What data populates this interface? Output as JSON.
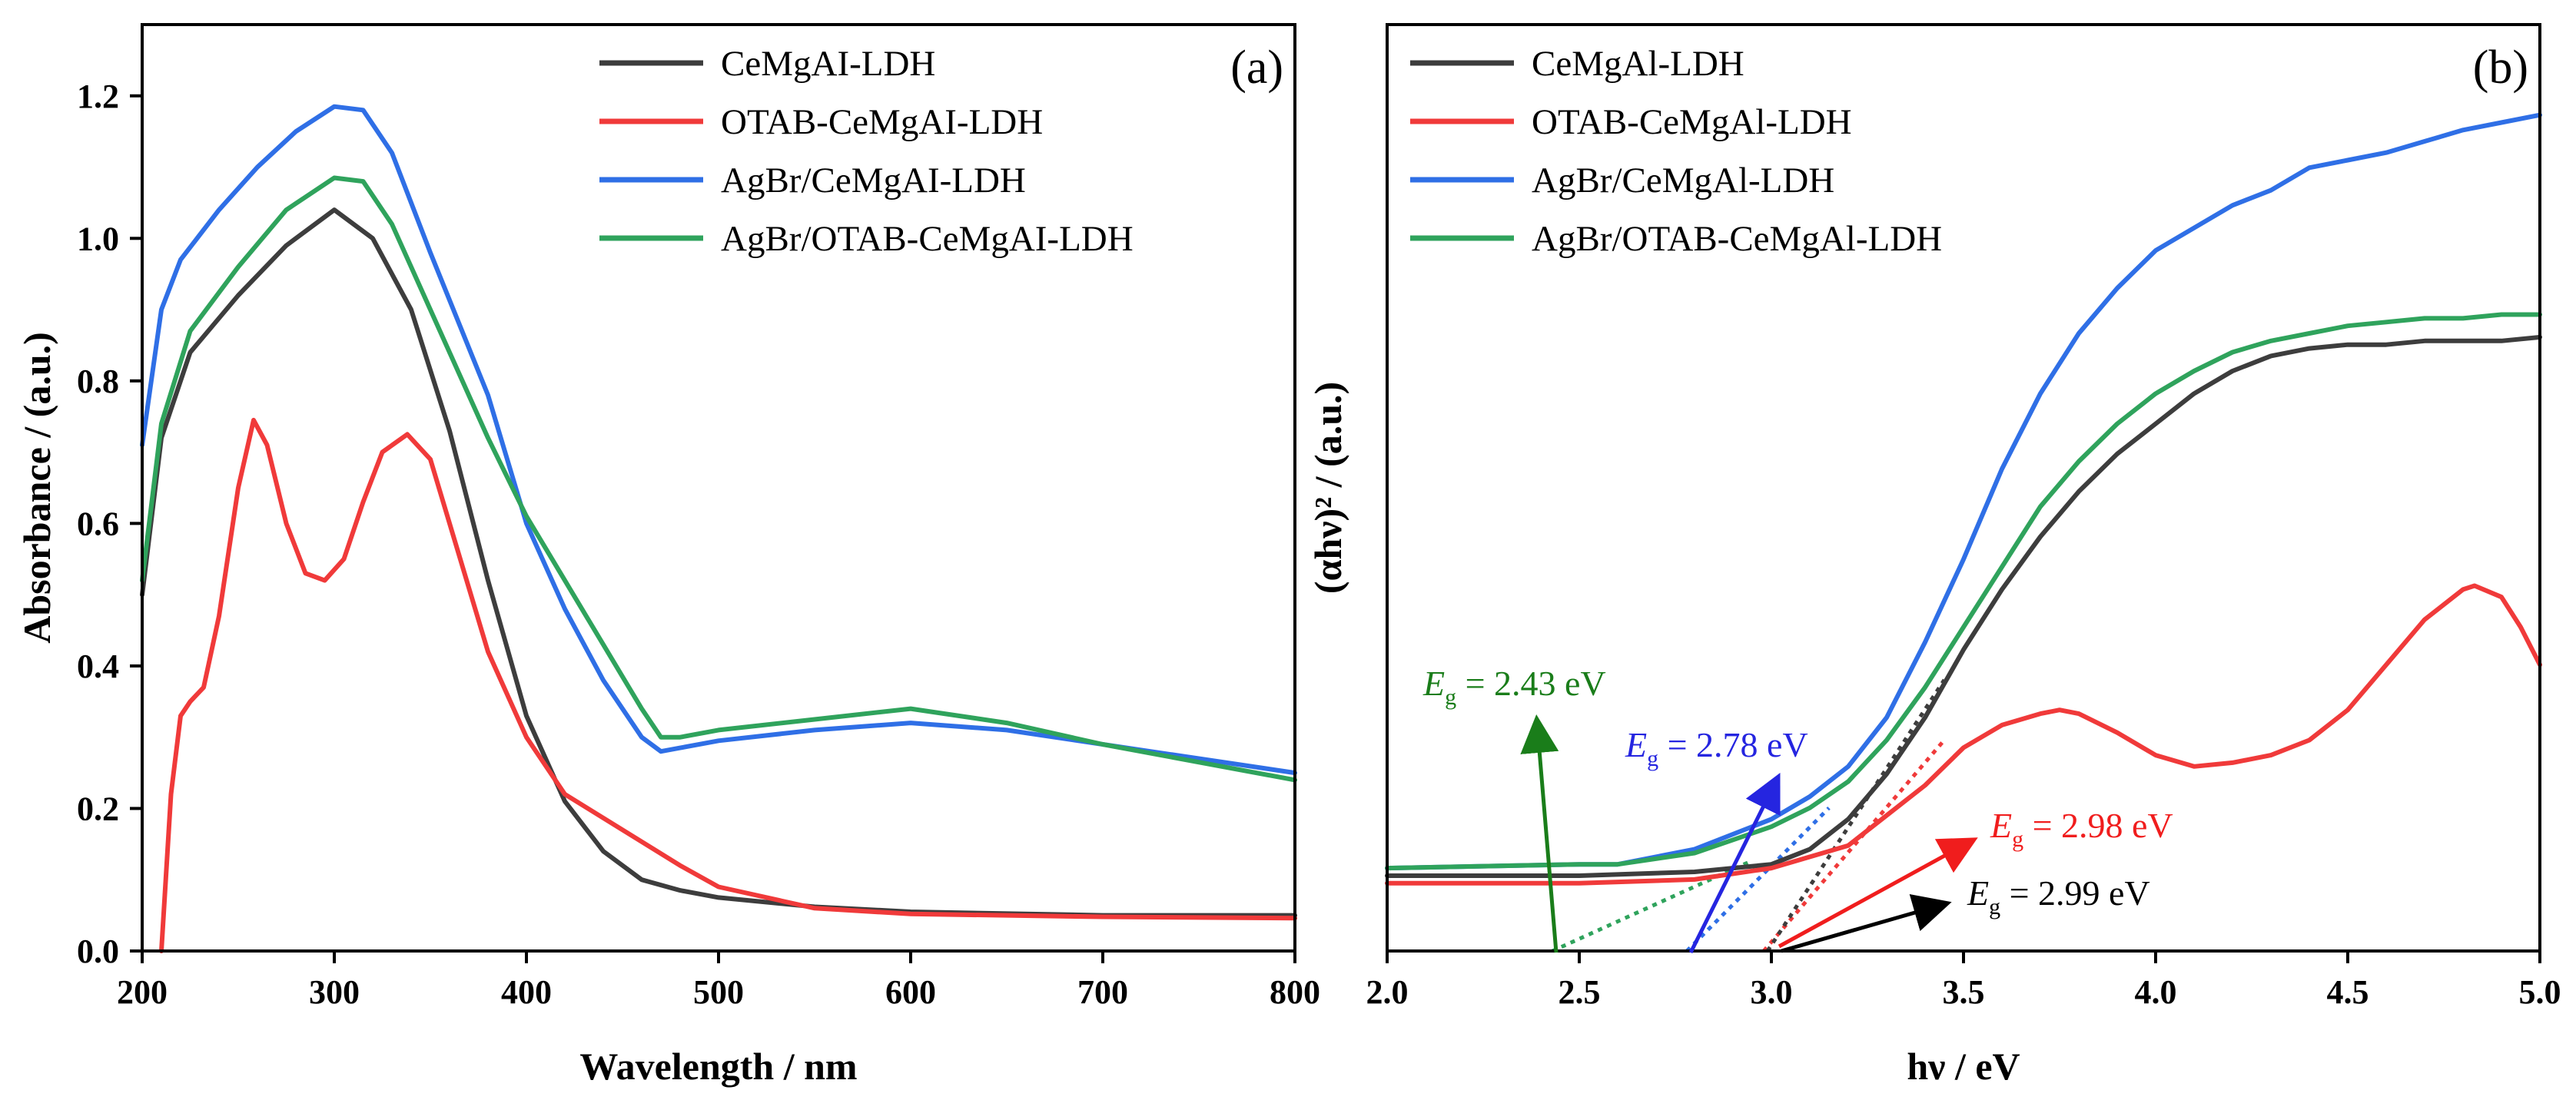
{
  "chart_data": [
    {
      "type": "line",
      "panel_label": "(a)",
      "xlabel": "Wavelength / nm",
      "ylabel": "Absorbance / (a.u.)",
      "xlim": [
        200,
        800
      ],
      "ylim": [
        0,
        1.3
      ],
      "xticks": [
        "200",
        "300",
        "400",
        "500",
        "600",
        "700",
        "800"
      ],
      "yticks": [
        "0.0",
        "0.2",
        "0.4",
        "0.6",
        "0.8",
        "1.0",
        "1.2"
      ],
      "xtick_values": [
        200,
        300,
        400,
        500,
        600,
        700,
        800
      ],
      "ytick_values": [
        0,
        0.2,
        0.4,
        0.6,
        0.8,
        1.0,
        1.2
      ],
      "legend_position": "top-right",
      "series": [
        {
          "name": "CeMgAI-LDH",
          "color": "#3d3d3d",
          "x": [
            200,
            210,
            225,
            250,
            275,
            300,
            320,
            340,
            360,
            380,
            400,
            420,
            440,
            460,
            480,
            500,
            550,
            600,
            700,
            800
          ],
          "y": [
            0.5,
            0.72,
            0.84,
            0.92,
            0.99,
            1.04,
            1.0,
            0.9,
            0.73,
            0.52,
            0.33,
            0.21,
            0.14,
            0.1,
            0.085,
            0.075,
            0.062,
            0.055,
            0.05,
            0.05
          ]
        },
        {
          "name": "OTAB-CeMgAI-LDH",
          "color": "#f03a3a",
          "x": [
            210,
            215,
            220,
            225,
            232,
            240,
            250,
            258,
            265,
            275,
            285,
            295,
            305,
            315,
            325,
            338,
            350,
            360,
            380,
            400,
            420,
            450,
            480,
            500,
            550,
            600,
            700,
            800
          ],
          "y": [
            0.0,
            0.22,
            0.33,
            0.35,
            0.37,
            0.47,
            0.65,
            0.745,
            0.71,
            0.6,
            0.53,
            0.52,
            0.55,
            0.63,
            0.7,
            0.725,
            0.69,
            0.6,
            0.42,
            0.3,
            0.22,
            0.17,
            0.12,
            0.09,
            0.06,
            0.052,
            0.048,
            0.046
          ]
        },
        {
          "name": "AgBr/CeMgAI-LDH",
          "color": "#2f6fe6",
          "x": [
            200,
            210,
            220,
            240,
            260,
            280,
            300,
            315,
            330,
            350,
            380,
            400,
            420,
            440,
            460,
            470,
            480,
            500,
            550,
            600,
            650,
            700,
            800
          ],
          "y": [
            0.71,
            0.9,
            0.97,
            1.04,
            1.1,
            1.15,
            1.185,
            1.18,
            1.12,
            0.98,
            0.78,
            0.6,
            0.48,
            0.38,
            0.3,
            0.28,
            0.285,
            0.295,
            0.31,
            0.32,
            0.31,
            0.29,
            0.25
          ]
        },
        {
          "name": "AgBr/OTAB-CeMgAI-LDH",
          "color": "#2fa35c",
          "x": [
            200,
            210,
            225,
            250,
            275,
            300,
            315,
            330,
            350,
            380,
            400,
            420,
            440,
            460,
            470,
            480,
            500,
            550,
            600,
            650,
            700,
            800
          ],
          "y": [
            0.52,
            0.74,
            0.87,
            0.96,
            1.04,
            1.085,
            1.08,
            1.02,
            0.9,
            0.72,
            0.61,
            0.52,
            0.43,
            0.34,
            0.3,
            0.3,
            0.31,
            0.325,
            0.34,
            0.32,
            0.29,
            0.24
          ]
        }
      ]
    },
    {
      "type": "line",
      "panel_label": "(b)",
      "xlabel": "hν / eV",
      "ylabel": "(αhν)² / (a.u.)",
      "xlim": [
        2.0,
        5.0
      ],
      "ylim": [
        0,
        1.23
      ],
      "xticks": [
        "2.0",
        "2.5",
        "3.0",
        "3.5",
        "4.0",
        "4.5",
        "5.0"
      ],
      "xtick_values": [
        2.0,
        2.5,
        3.0,
        3.5,
        4.0,
        4.5,
        5.0
      ],
      "legend_position": "top-left",
      "series": [
        {
          "name": "CeMgAl-LDH",
          "color": "#3d3d3d",
          "x": [
            2.0,
            2.5,
            2.8,
            3.0,
            3.1,
            3.2,
            3.3,
            3.4,
            3.5,
            3.6,
            3.7,
            3.8,
            3.9,
            4.0,
            4.1,
            4.2,
            4.3,
            4.4,
            4.5,
            4.6,
            4.7,
            4.8,
            4.9,
            5.0
          ],
          "y": [
            0.1,
            0.1,
            0.105,
            0.115,
            0.135,
            0.175,
            0.235,
            0.31,
            0.4,
            0.48,
            0.55,
            0.61,
            0.66,
            0.7,
            0.74,
            0.77,
            0.79,
            0.8,
            0.805,
            0.805,
            0.81,
            0.81,
            0.81,
            0.815
          ]
        },
        {
          "name": "OTAB-CeMgAl-LDH",
          "color": "#f03a3a",
          "x": [
            2.0,
            2.5,
            2.8,
            3.0,
            3.2,
            3.3,
            3.4,
            3.5,
            3.6,
            3.7,
            3.75,
            3.8,
            3.9,
            4.0,
            4.1,
            4.2,
            4.3,
            4.4,
            4.5,
            4.6,
            4.7,
            4.8,
            4.83,
            4.9,
            4.95,
            5.0
          ],
          "y": [
            0.09,
            0.09,
            0.095,
            0.11,
            0.14,
            0.18,
            0.22,
            0.27,
            0.3,
            0.315,
            0.32,
            0.315,
            0.29,
            0.26,
            0.245,
            0.25,
            0.26,
            0.28,
            0.32,
            0.38,
            0.44,
            0.48,
            0.485,
            0.47,
            0.43,
            0.38
          ]
        },
        {
          "name": "AgBr/CeMgAl-LDH",
          "color": "#2f6fe6",
          "x": [
            2.0,
            2.5,
            2.6,
            2.8,
            3.0,
            3.1,
            3.2,
            3.3,
            3.4,
            3.5,
            3.6,
            3.7,
            3.8,
            3.9,
            4.0,
            4.1,
            4.2,
            4.3,
            4.4,
            4.5,
            4.6,
            4.7,
            4.8,
            4.9,
            5.0
          ],
          "y": [
            0.11,
            0.115,
            0.115,
            0.135,
            0.175,
            0.205,
            0.245,
            0.31,
            0.41,
            0.52,
            0.64,
            0.74,
            0.82,
            0.88,
            0.93,
            0.96,
            0.99,
            1.01,
            1.04,
            1.05,
            1.06,
            1.075,
            1.09,
            1.1,
            1.11
          ]
        },
        {
          "name": "AgBr/OTAB-CeMgAl-LDH",
          "color": "#2fa35c",
          "x": [
            2.0,
            2.5,
            2.6,
            2.8,
            3.0,
            3.1,
            3.2,
            3.3,
            3.4,
            3.5,
            3.6,
            3.7,
            3.8,
            3.9,
            4.0,
            4.1,
            4.2,
            4.3,
            4.4,
            4.5,
            4.6,
            4.7,
            4.8,
            4.9,
            5.0
          ],
          "y": [
            0.11,
            0.115,
            0.115,
            0.13,
            0.165,
            0.19,
            0.225,
            0.28,
            0.35,
            0.43,
            0.51,
            0.59,
            0.65,
            0.7,
            0.74,
            0.77,
            0.795,
            0.81,
            0.82,
            0.83,
            0.835,
            0.84,
            0.84,
            0.845,
            0.845
          ]
        }
      ],
      "tangent_lines": [
        {
          "color": "#2fa35c",
          "x": [
            2.43,
            2.95
          ],
          "y": [
            0.0,
            0.12
          ]
        },
        {
          "color": "#2f6fe6",
          "x": [
            2.78,
            3.15
          ],
          "y": [
            0.0,
            0.19
          ]
        },
        {
          "color": "#f03a3a",
          "x": [
            2.98,
            3.45
          ],
          "y": [
            0.0,
            0.28
          ]
        },
        {
          "color": "#3d3d3d",
          "x": [
            2.99,
            3.45
          ],
          "y": [
            0.0,
            0.36
          ]
        }
      ],
      "annotations": [
        {
          "prefix": "E",
          "sub": "g",
          "value": " = 2.43 eV",
          "color": "#1a7d1a",
          "point_to": [
            2.43,
            0.0
          ]
        },
        {
          "prefix": "E",
          "sub": "g",
          "value": " = 2.78 eV",
          "color": "#2525e0",
          "point_to": [
            2.78,
            0.0
          ]
        },
        {
          "prefix": "E",
          "sub": "g",
          "value": " = 2.98 eV",
          "color": "#f01d1d",
          "point_to": [
            3.0,
            0.0
          ]
        },
        {
          "prefix": "E",
          "sub": "g",
          "value": " = 2.99 eV",
          "color": "#000000",
          "point_to": [
            3.0,
            0.0
          ]
        }
      ]
    }
  ]
}
